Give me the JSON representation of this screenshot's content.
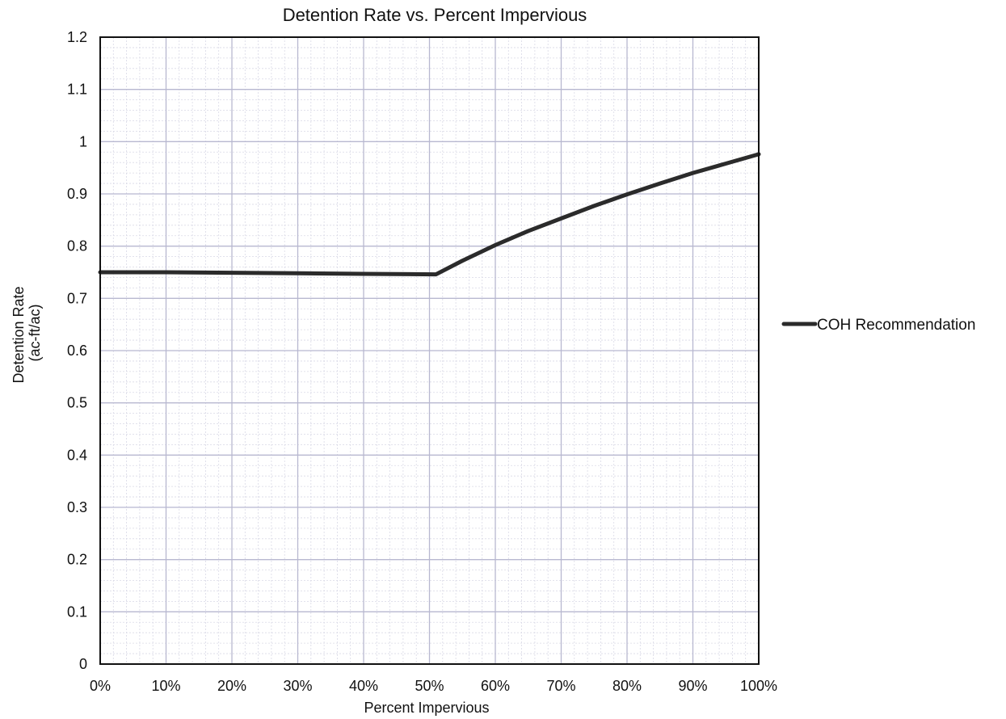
{
  "chart_data": {
    "type": "line",
    "title": "Detention Rate vs. Percent Impervious",
    "xlabel": "Percent Impervious",
    "ylabel_lines": [
      "Detention Rate",
      "(ac-ft/ac)"
    ],
    "xlim": [
      0,
      100
    ],
    "ylim": [
      0,
      1.2
    ],
    "x_ticks": [
      0,
      10,
      20,
      30,
      40,
      50,
      60,
      70,
      80,
      90,
      100
    ],
    "x_tick_labels": [
      "0%",
      "10%",
      "20%",
      "30%",
      "40%",
      "50%",
      "60%",
      "70%",
      "80%",
      "90%",
      "100%"
    ],
    "y_ticks": [
      0,
      0.1,
      0.2,
      0.3,
      0.4,
      0.5,
      0.6,
      0.7,
      0.8,
      0.9,
      1.0,
      1.1,
      1.2
    ],
    "y_tick_labels": [
      "0",
      "0.1",
      "0.2",
      "0.3",
      "0.4",
      "0.5",
      "0.6",
      "0.7",
      "0.8",
      "0.9",
      "1",
      "1.1",
      "1.2"
    ],
    "grid": true,
    "minor_grid": true,
    "legend_position": "right",
    "series": [
      {
        "name": "COH Recommendation",
        "color": "#2b2b2b",
        "x": [
          0,
          10,
          20,
          30,
          40,
          51,
          55,
          60,
          65,
          70,
          75,
          80,
          85,
          90,
          95,
          100
        ],
        "y": [
          0.75,
          0.75,
          0.749,
          0.748,
          0.747,
          0.746,
          0.772,
          0.802,
          0.829,
          0.853,
          0.877,
          0.899,
          0.92,
          0.94,
          0.958,
          0.976
        ]
      }
    ]
  }
}
